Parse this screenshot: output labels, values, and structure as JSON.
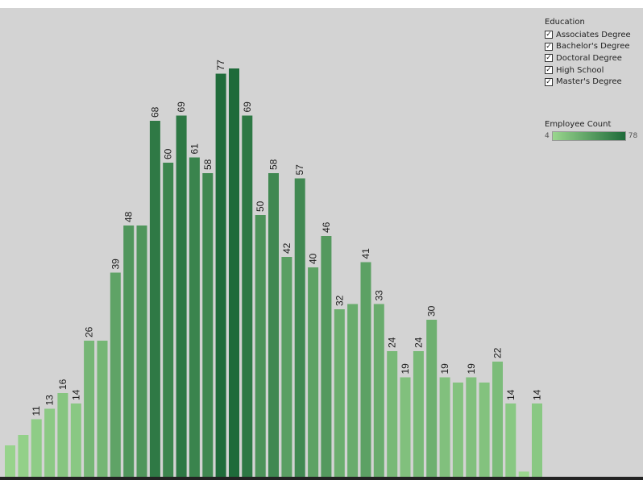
{
  "chart_data": {
    "type": "bar",
    "values": [
      6,
      8,
      11,
      13,
      16,
      14,
      26,
      26,
      39,
      48,
      48,
      68,
      60,
      69,
      61,
      58,
      77,
      78,
      69,
      50,
      58,
      42,
      57,
      40,
      46,
      32,
      33,
      41,
      33,
      24,
      19,
      24,
      30,
      19,
      18,
      19,
      18,
      22,
      14,
      1,
      14
    ],
    "labels": [
      "",
      "",
      "11",
      "13",
      "16",
      "14",
      "26",
      "",
      "39",
      "48",
      "",
      "68",
      "60",
      "69",
      "61",
      "58",
      "77",
      "",
      "69",
      "50",
      "58",
      "42",
      "57",
      "40",
      "46",
      "32",
      "",
      "41",
      "33",
      "24",
      "19",
      "24",
      "30",
      "19",
      "",
      "19",
      "",
      "22",
      "14",
      "",
      "14"
    ],
    "ylim": [
      0,
      80
    ],
    "color_range": [
      4,
      78
    ],
    "color_low": "#9ad68e",
    "color_high": "#1e6b3a",
    "background": "#d3d3d3"
  },
  "legend": {
    "title": "Education",
    "items": [
      {
        "label": "Associates Degree",
        "checked": true
      },
      {
        "label": "Bachelor's Degree",
        "checked": true
      },
      {
        "label": "Doctoral Degree",
        "checked": true
      },
      {
        "label": "High School",
        "checked": true
      },
      {
        "label": "Master's Degree",
        "checked": true
      }
    ],
    "check_glyph": "✓"
  },
  "color_legend": {
    "title": "Employee Count",
    "min_label": "4",
    "max_label": "78"
  }
}
